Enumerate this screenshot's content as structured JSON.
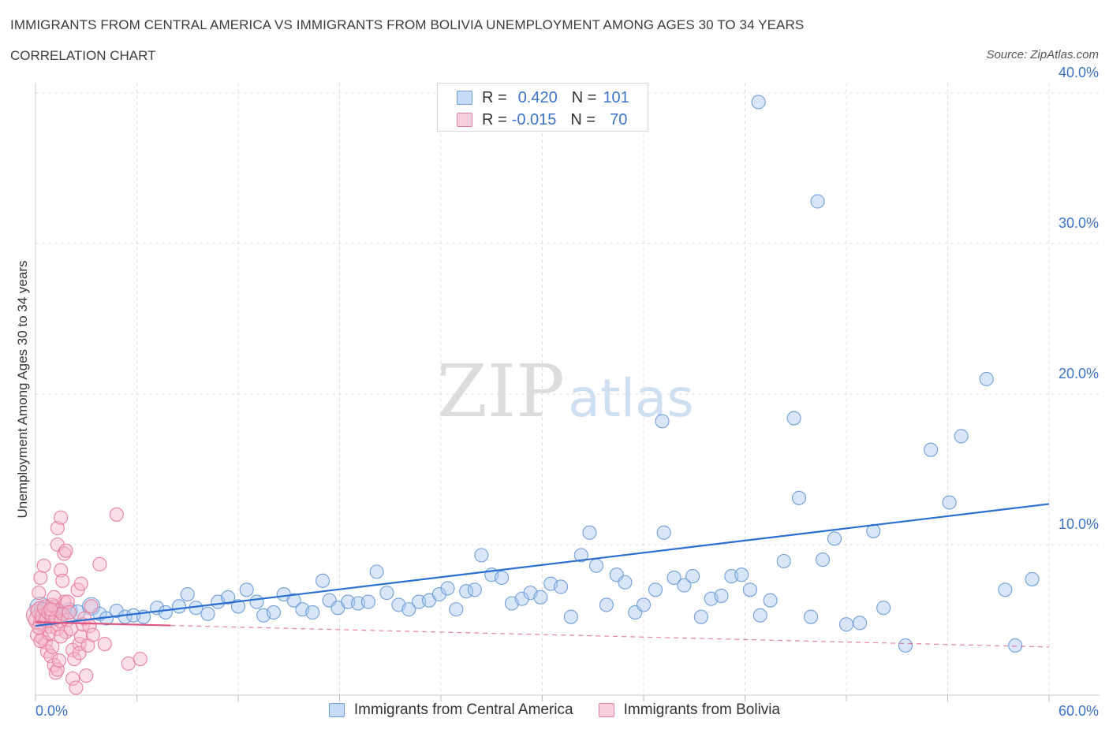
{
  "title": "IMMIGRANTS FROM CENTRAL AMERICA VS IMMIGRANTS FROM BOLIVIA UNEMPLOYMENT AMONG AGES 30 TO 34 YEARS",
  "subtitle": "CORRELATION CHART",
  "source": "Source: ZipAtlas.com",
  "watermark": {
    "zip": "ZIP",
    "atlas": "atlas"
  },
  "colors": {
    "blue_fill": "#a8c8f0",
    "blue_stroke": "#6f9fd8",
    "blue_line": "#2a6fd0",
    "pink_fill": "#f5b8cb",
    "pink_stroke": "#e8809f",
    "pink_line": "#e0557f",
    "axis_label": "#3b73c8",
    "grid": "#dcdcdc"
  },
  "legend_top": {
    "blue": {
      "r_label": "R =",
      "r_value": "0.420",
      "n_label": "N =",
      "n_value": "101"
    },
    "pink": {
      "r_label": "R =",
      "r_value": "-0.015",
      "n_label": "N =",
      "n_value": "70"
    }
  },
  "legend_bottom": {
    "blue": "Immigrants from Central America",
    "pink": "Immigrants from Bolivia"
  },
  "chart_data": {
    "type": "scatter",
    "title": "IMMIGRANTS FROM CENTRAL AMERICA VS IMMIGRANTS FROM BOLIVIA UNEMPLOYMENT AMONG AGES 30 TO 34 YEARS",
    "xlabel": "",
    "ylabel": "Unemployment Among Ages 30 to 34 years",
    "xlim": [
      0,
      60
    ],
    "ylim": [
      0,
      40
    ],
    "x_tick_labels": [
      "0.0%",
      "60.0%"
    ],
    "y_ticks": [
      10,
      20,
      30,
      40
    ],
    "y_tick_labels": [
      "10.0%",
      "20.0%",
      "30.0%",
      "40.0%"
    ],
    "grid": true,
    "series": [
      {
        "name": "Immigrants from Central America",
        "color": "blue",
        "R": 0.42,
        "N": 101,
        "trend": {
          "x": [
            0,
            60
          ],
          "y": [
            4.6,
            12.7
          ],
          "style": "solid"
        },
        "points": [
          [
            0.3,
            5.8,
            1.6
          ],
          [
            0.5,
            5.5,
            1.5
          ],
          [
            0.8,
            5.6,
            1.4
          ],
          [
            1.1,
            5.7,
            1.3
          ],
          [
            1.5,
            5.4,
            1.3
          ],
          [
            2.0,
            5.6,
            1.2
          ],
          [
            2.5,
            5.5,
            1.1
          ],
          [
            3.3,
            5.9,
            1.3
          ],
          [
            3.8,
            5.4,
            1.0
          ],
          [
            4.2,
            5.1,
            1.0
          ],
          [
            4.8,
            5.6,
            1.0
          ],
          [
            5.3,
            5.2,
            1.0
          ],
          [
            5.8,
            5.3,
            1.0
          ],
          [
            6.4,
            5.2,
            1.0
          ],
          [
            7.2,
            5.8,
            1.0
          ],
          [
            7.7,
            5.5,
            1.0
          ],
          [
            8.5,
            5.9,
            1.0
          ],
          [
            9.0,
            6.7,
            1.0
          ],
          [
            9.5,
            5.8,
            1.0
          ],
          [
            10.2,
            5.4,
            1.0
          ],
          [
            10.8,
            6.2,
            1.0
          ],
          [
            11.4,
            6.5,
            1.0
          ],
          [
            12.0,
            5.9,
            1.0
          ],
          [
            12.5,
            7.0,
            1.0
          ],
          [
            13.1,
            6.2,
            1.0
          ],
          [
            13.5,
            5.3,
            1.0
          ],
          [
            14.1,
            5.5,
            1.0
          ],
          [
            14.7,
            6.7,
            1.0
          ],
          [
            15.3,
            6.3,
            1.0
          ],
          [
            15.8,
            5.7,
            1.0
          ],
          [
            16.4,
            5.5,
            1.0
          ],
          [
            17.0,
            7.6,
            1.0
          ],
          [
            17.4,
            6.3,
            1.0
          ],
          [
            17.9,
            5.8,
            1.0
          ],
          [
            18.5,
            6.2,
            1.0
          ],
          [
            19.1,
            6.1,
            1.0
          ],
          [
            19.7,
            6.2,
            1.0
          ],
          [
            20.2,
            8.2,
            1.0
          ],
          [
            20.8,
            6.8,
            1.0
          ],
          [
            21.5,
            6.0,
            1.0
          ],
          [
            22.1,
            5.7,
            1.0
          ],
          [
            22.7,
            6.2,
            1.0
          ],
          [
            23.3,
            6.3,
            1.0
          ],
          [
            23.9,
            6.7,
            1.0
          ],
          [
            24.4,
            7.1,
            1.0
          ],
          [
            24.9,
            5.7,
            1.0
          ],
          [
            25.5,
            6.9,
            1.0
          ],
          [
            26.0,
            7.0,
            1.0
          ],
          [
            26.4,
            9.3,
            1.0
          ],
          [
            27.0,
            8.0,
            1.0
          ],
          [
            27.6,
            7.8,
            1.0
          ],
          [
            28.2,
            6.1,
            1.0
          ],
          [
            28.8,
            6.4,
            1.0
          ],
          [
            29.3,
            6.8,
            1.0
          ],
          [
            29.9,
            6.5,
            1.0
          ],
          [
            30.5,
            7.4,
            1.0
          ],
          [
            31.1,
            7.2,
            1.0
          ],
          [
            31.7,
            5.2,
            1.0
          ],
          [
            32.3,
            9.3,
            1.0
          ],
          [
            32.8,
            10.8,
            1.0
          ],
          [
            33.2,
            8.6,
            1.0
          ],
          [
            33.8,
            6.0,
            1.0
          ],
          [
            34.4,
            8.0,
            1.0
          ],
          [
            34.9,
            7.5,
            1.0
          ],
          [
            35.5,
            5.5,
            1.0
          ],
          [
            36.0,
            6.0,
            1.0
          ],
          [
            36.7,
            7.0,
            1.0
          ],
          [
            37.2,
            10.8,
            1.0
          ],
          [
            37.8,
            7.8,
            1.0
          ],
          [
            38.4,
            7.3,
            1.0
          ],
          [
            38.9,
            7.9,
            1.0
          ],
          [
            39.4,
            5.2,
            1.0
          ],
          [
            40.0,
            6.4,
            1.0
          ],
          [
            40.6,
            6.6,
            1.0
          ],
          [
            41.2,
            7.9,
            1.0
          ],
          [
            41.8,
            8.0,
            1.0
          ],
          [
            42.3,
            7.0,
            1.0
          ],
          [
            42.9,
            5.3,
            1.0
          ],
          [
            43.5,
            6.3,
            1.0
          ],
          [
            44.3,
            8.9,
            1.0
          ],
          [
            45.2,
            13.1,
            1.0
          ],
          [
            45.9,
            5.2,
            1.0
          ],
          [
            46.6,
            9.0,
            1.0
          ],
          [
            47.3,
            10.4,
            1.0
          ],
          [
            48.0,
            4.7,
            1.0
          ],
          [
            48.8,
            4.8,
            1.0
          ],
          [
            49.6,
            10.9,
            1.0
          ],
          [
            50.2,
            5.8,
            1.0
          ],
          [
            51.5,
            3.3,
            1.0
          ],
          [
            53.0,
            16.3,
            1.0
          ],
          [
            54.1,
            12.8,
            1.0
          ],
          [
            54.8,
            17.2,
            1.0
          ],
          [
            56.3,
            21.0,
            1.0
          ],
          [
            57.4,
            7.0,
            1.0
          ],
          [
            58.0,
            3.3,
            1.0
          ],
          [
            59.0,
            7.7,
            1.0
          ],
          [
            37.1,
            18.2,
            1.0
          ],
          [
            44.9,
            18.4,
            1.0
          ],
          [
            42.8,
            39.4,
            1.0
          ],
          [
            46.3,
            32.8,
            1.0
          ]
        ]
      },
      {
        "name": "Immigrants from Bolivia",
        "color": "pink",
        "R": -0.015,
        "N": 70,
        "trend": {
          "x": [
            0,
            60
          ],
          "y": [
            4.85,
            3.2
          ],
          "style": "dashed_after_8"
        },
        "points": [
          [
            0.1,
            5.3,
            1.6
          ],
          [
            0.2,
            5.0,
            1.5
          ],
          [
            0.3,
            5.6,
            1.4
          ],
          [
            0.4,
            4.8,
            1.3
          ],
          [
            0.5,
            5.2,
            1.3
          ],
          [
            0.6,
            5.8,
            1.2
          ],
          [
            0.7,
            5.0,
            1.2
          ],
          [
            0.8,
            5.5,
            1.1
          ],
          [
            0.9,
            4.6,
            1.1
          ],
          [
            1.0,
            5.3,
            1.1
          ],
          [
            1.1,
            5.9,
            1.0
          ],
          [
            1.2,
            5.1,
            1.0
          ],
          [
            1.3,
            4.4,
            1.0
          ],
          [
            1.4,
            5.6,
            1.0
          ],
          [
            1.5,
            4.9,
            1.0
          ],
          [
            1.6,
            5.4,
            1.0
          ],
          [
            1.7,
            6.2,
            1.0
          ],
          [
            1.8,
            4.2,
            1.0
          ],
          [
            1.9,
            5.0,
            1.0
          ],
          [
            0.2,
            6.8,
            1.0
          ],
          [
            0.3,
            7.8,
            1.0
          ],
          [
            0.5,
            8.6,
            1.0
          ],
          [
            0.4,
            3.8,
            1.0
          ],
          [
            0.6,
            3.5,
            1.0
          ],
          [
            0.7,
            2.9,
            1.0
          ],
          [
            0.8,
            4.1,
            1.0
          ],
          [
            0.9,
            2.6,
            1.0
          ],
          [
            1.0,
            3.2,
            1.0
          ],
          [
            1.1,
            2.0,
            1.0
          ],
          [
            1.2,
            1.5,
            1.0
          ],
          [
            1.3,
            1.7,
            1.0
          ],
          [
            1.4,
            2.3,
            1.0
          ],
          [
            1.5,
            3.9,
            1.0
          ],
          [
            1.3,
            11.1,
            1.0
          ],
          [
            1.5,
            11.8,
            1.0
          ],
          [
            1.3,
            10.0,
            1.0
          ],
          [
            1.7,
            9.4,
            1.0
          ],
          [
            1.8,
            9.6,
            1.0
          ],
          [
            1.5,
            8.3,
            1.0
          ],
          [
            1.6,
            7.6,
            1.0
          ],
          [
            1.9,
            6.2,
            1.0
          ],
          [
            2.0,
            5.5,
            1.0
          ],
          [
            2.1,
            4.4,
            1.0
          ],
          [
            2.2,
            3.0,
            1.0
          ],
          [
            2.3,
            2.4,
            1.0
          ],
          [
            2.2,
            1.1,
            1.0
          ],
          [
            2.4,
            0.5,
            1.0
          ],
          [
            2.5,
            7.0,
            1.0
          ],
          [
            2.6,
            3.4,
            1.0
          ],
          [
            2.7,
            3.9,
            1.0
          ],
          [
            2.8,
            4.7,
            1.0
          ],
          [
            2.6,
            2.8,
            1.0
          ],
          [
            2.7,
            7.4,
            1.0
          ],
          [
            2.9,
            5.1,
            1.0
          ],
          [
            3.0,
            1.3,
            1.0
          ],
          [
            3.1,
            3.3,
            1.0
          ],
          [
            3.2,
            4.6,
            1.0
          ],
          [
            3.3,
            5.9,
            1.0
          ],
          [
            3.4,
            4.0,
            1.0
          ],
          [
            3.8,
            8.7,
            1.0
          ],
          [
            4.1,
            3.4,
            1.0
          ],
          [
            4.8,
            12.0,
            1.0
          ],
          [
            5.5,
            2.1,
            1.0
          ],
          [
            6.2,
            2.4,
            1.0
          ],
          [
            0.1,
            4.0,
            1.0
          ],
          [
            0.2,
            4.5,
            1.0
          ],
          [
            0.3,
            3.6,
            1.0
          ],
          [
            1.0,
            6.0,
            1.0
          ],
          [
            1.1,
            6.5,
            1.0
          ],
          [
            0.9,
            5.7,
            1.0
          ]
        ]
      }
    ]
  }
}
